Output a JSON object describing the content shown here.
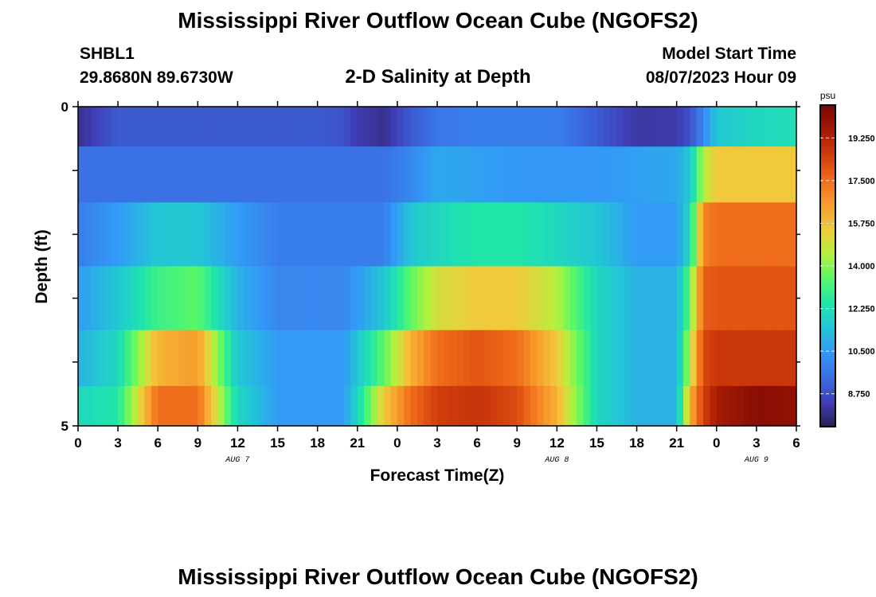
{
  "page": {
    "title": "Mississippi River Outflow Ocean Cube (NGOFS2)",
    "title_repeat": "Mississippi River Outflow Ocean Cube (NGOFS2)",
    "station": "SHBL1",
    "coords": "29.8680N  89.6730W",
    "model_start_label": "Model Start Time",
    "model_start_value": "08/07/2023 Hour 09"
  },
  "chart_data": {
    "type": "heatmap",
    "title": "2-D Salinity at Depth",
    "xlabel": "Forecast Time(Z)",
    "ylabel": "Depth (ft)",
    "colorbar_unit": "psu",
    "colorbar_ticks": [
      "8.750",
      "10.500",
      "12.250",
      "14.000",
      "15.750",
      "17.500",
      "19.250"
    ],
    "colorbar_tick_values": [
      8.75,
      10.5,
      12.25,
      14.0,
      15.75,
      17.5,
      19.25
    ],
    "color_range": [
      7.4,
      20.6
    ],
    "x_tick_labels": [
      "0",
      "3",
      "6",
      "9",
      "12",
      "15",
      "18",
      "21",
      "0",
      "3",
      "6",
      "9",
      "12",
      "15",
      "18",
      "21",
      "0",
      "3",
      "6"
    ],
    "x_range_hours": [
      0,
      54
    ],
    "date_labels": [
      {
        "text": "AUG 7",
        "hour": 12
      },
      {
        "text": "AUG 8",
        "hour": 36
      },
      {
        "text": "AUG 9",
        "hour": 51
      }
    ],
    "y_tick_labels": [
      "0",
      "5"
    ],
    "y_range": [
      0,
      5
    ],
    "colormap": [
      "#2f1d52",
      "#3f3fb8",
      "#3b6fe4",
      "#3399f7",
      "#23c6d6",
      "#1fe6a9",
      "#5af866",
      "#b7f03c",
      "#f2c93c",
      "#f79b2c",
      "#f06a1a",
      "#cf3b0b",
      "#a21a04",
      "#780604"
    ],
    "row_depths_ft": [
      0.25,
      1,
      2,
      3,
      4,
      4.75
    ],
    "rows_knots_hours": [
      0,
      3,
      6,
      9,
      12,
      15,
      18,
      20,
      21,
      23,
      25,
      27,
      30,
      33,
      36,
      39,
      42,
      45,
      46,
      47,
      48,
      51,
      54
    ],
    "rows": [
      [
        8.0,
        9.0,
        9.0,
        9.0,
        9.0,
        9.0,
        9.0,
        8.8,
        8.3,
        8.0,
        9.0,
        9.6,
        9.8,
        9.8,
        9.8,
        9.0,
        8.2,
        8.3,
        8.8,
        10.0,
        11.5,
        12.0,
        12.2
      ],
      [
        9.5,
        9.5,
        9.5,
        9.5,
        9.5,
        9.5,
        9.5,
        9.5,
        9.5,
        9.5,
        10.0,
        10.8,
        10.6,
        10.4,
        10.4,
        10.4,
        10.6,
        10.8,
        11.5,
        14.5,
        15.5,
        15.5,
        15.5
      ],
      [
        9.8,
        10.5,
        11.5,
        11.5,
        10.5,
        9.8,
        9.8,
        9.8,
        9.8,
        9.8,
        11.5,
        12.0,
        12.5,
        12.5,
        12.0,
        11.5,
        10.5,
        10.5,
        12.0,
        17.0,
        17.5,
        17.5,
        17.5
      ],
      [
        10.5,
        11.5,
        13.0,
        13.5,
        11.0,
        10.0,
        10.0,
        10.0,
        10.5,
        11.5,
        13.5,
        15.0,
        15.5,
        15.5,
        14.5,
        12.0,
        11.0,
        11.0,
        13.5,
        17.8,
        18.0,
        18.0,
        18.0
      ],
      [
        11.0,
        12.0,
        16.0,
        16.5,
        11.5,
        10.5,
        10.5,
        10.5,
        11.5,
        13.5,
        16.0,
        17.5,
        18.0,
        17.5,
        15.5,
        12.0,
        11.0,
        11.0,
        14.5,
        18.3,
        18.7,
        18.7,
        18.7
      ],
      [
        12.0,
        12.5,
        17.5,
        17.5,
        12.0,
        10.5,
        10.5,
        10.5,
        12.0,
        15.5,
        17.5,
        18.5,
        18.8,
        18.2,
        16.0,
        12.0,
        11.0,
        11.0,
        16.0,
        18.5,
        19.5,
        20.2,
        20.0
      ]
    ]
  }
}
